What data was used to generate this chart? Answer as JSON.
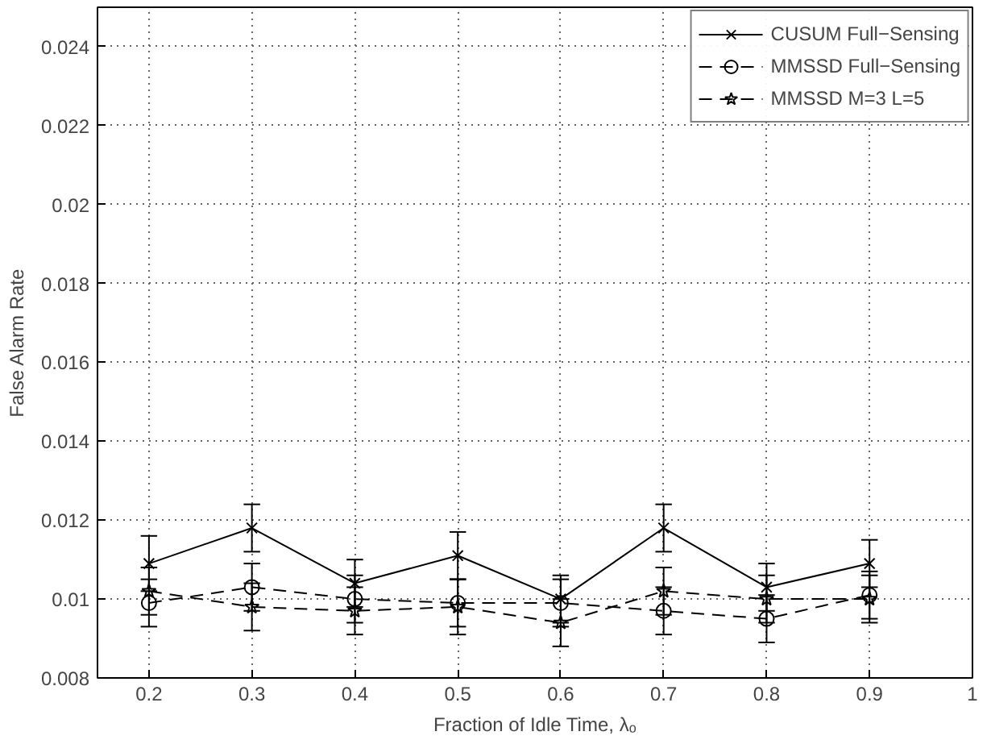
{
  "chart_data": {
    "type": "line",
    "xlabel": "Fraction of Idle Time, λₒ",
    "ylabel": "False Alarm Rate",
    "x": [
      0.2,
      0.3,
      0.4,
      0.5,
      0.6,
      0.7,
      0.8,
      0.9
    ],
    "xlim": [
      0.15,
      1
    ],
    "xticks": [
      0.2,
      0.3,
      0.4,
      0.5,
      0.6,
      0.7,
      0.8,
      0.9,
      1
    ],
    "ylim": [
      0.008,
      0.025
    ],
    "yticks": [
      0.008,
      0.01,
      0.012,
      0.014,
      0.016,
      0.018,
      0.02,
      0.022,
      0.024
    ],
    "grid": true,
    "legend": "top right",
    "series": [
      {
        "name": "CUSUM Full−Sensing",
        "color": "#000000",
        "marker": "cross",
        "line_style": "solid",
        "values": [
          0.0109,
          0.0118,
          0.0104,
          0.0111,
          0.01,
          0.0118,
          0.0103,
          0.0109
        ],
        "errors": [
          0.0007,
          0.0006,
          0.0006,
          0.0006,
          0.0006,
          0.0006,
          0.0006,
          0.0006
        ]
      },
      {
        "name": "MMSSD Full−Sensing",
        "color": "#000000",
        "marker": "circle",
        "line_style": "dashed",
        "values": [
          0.0099,
          0.0103,
          0.01,
          0.0099,
          0.0099,
          0.0097,
          0.0095,
          0.0101
        ],
        "errors": [
          0.0006,
          0.0006,
          0.0006,
          0.0006,
          0.0006,
          0.0006,
          0.0006,
          0.0006
        ]
      },
      {
        "name": "MMSSD M=3 L=5",
        "color": "#000000",
        "marker": "star",
        "line_style": "dashed",
        "values": [
          0.0102,
          0.0098,
          0.0097,
          0.0098,
          0.0094,
          0.0102,
          0.01,
          0.01
        ],
        "errors": [
          0.0006,
          0.0006,
          0.0006,
          0.0007,
          0.0006,
          0.0006,
          0.0006,
          0.0006
        ]
      }
    ]
  }
}
